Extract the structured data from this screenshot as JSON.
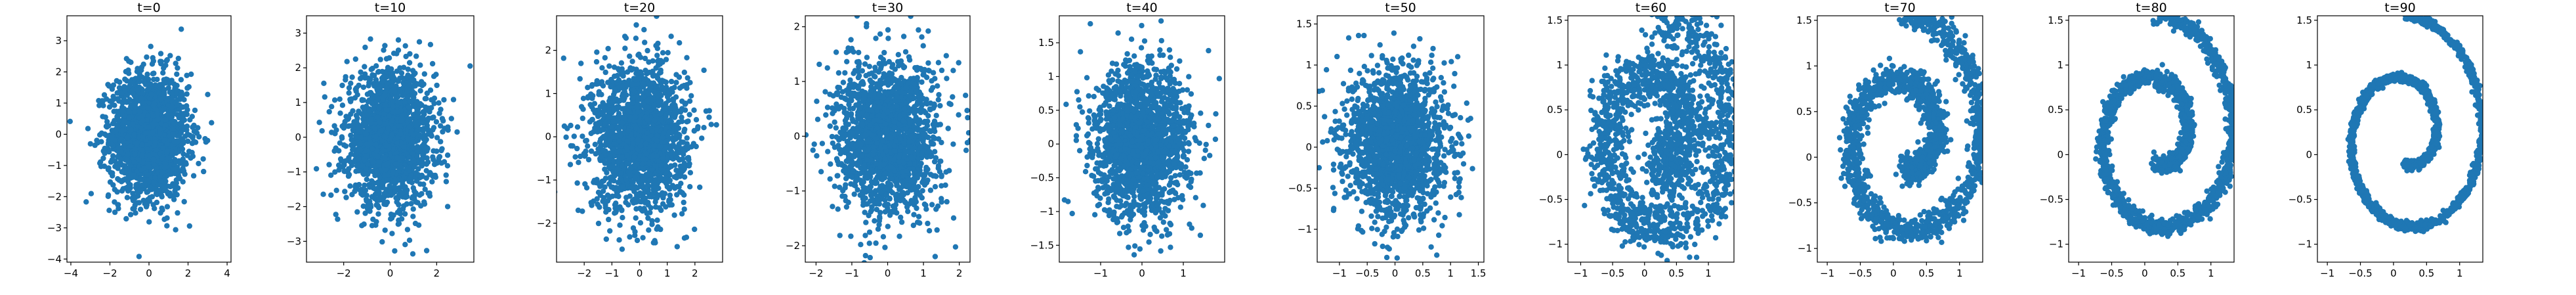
{
  "figure": {
    "marker_color": "#1f77b4",
    "background": "#ffffff",
    "frame_color": "#000000"
  },
  "chart_data": [
    {
      "type": "scatter",
      "title": "t=0",
      "shape": "blob",
      "grid": false,
      "xlim": [
        -4.2,
        4.2
      ],
      "ylim": [
        -4.1,
        3.8
      ],
      "xticks": [
        -4,
        -2,
        0,
        2,
        4
      ],
      "yticks": [
        -4,
        -3,
        -2,
        -1,
        0,
        1,
        2,
        3
      ],
      "spread": [
        1.0,
        1.0
      ]
    },
    {
      "type": "scatter",
      "title": "t=10",
      "shape": "blob",
      "grid": false,
      "xlim": [
        -3.6,
        3.6
      ],
      "ylim": [
        -3.6,
        3.5
      ],
      "xticks": [
        -2,
        0,
        2
      ],
      "yticks": [
        -3,
        -2,
        -1,
        0,
        1,
        2,
        3
      ],
      "spread": [
        0.95,
        0.95
      ]
    },
    {
      "type": "scatter",
      "title": "t=20",
      "shape": "blob",
      "grid": false,
      "xlim": [
        -3.0,
        3.0
      ],
      "ylim": [
        -2.9,
        2.8
      ],
      "xticks": [
        -2,
        -1,
        0,
        1,
        2
      ],
      "yticks": [
        -2,
        -1,
        0,
        1,
        2
      ],
      "spread": [
        0.85,
        0.85
      ]
    },
    {
      "type": "scatter",
      "title": "t=30",
      "shape": "blob",
      "grid": false,
      "xlim": [
        -2.3,
        2.3
      ],
      "ylim": [
        -2.3,
        2.2
      ],
      "xticks": [
        -2,
        -1,
        0,
        1,
        2
      ],
      "yticks": [
        -2,
        -1,
        0,
        1,
        2
      ],
      "spread": [
        0.7,
        0.7
      ]
    },
    {
      "type": "scatter",
      "title": "t=40",
      "shape": "blob",
      "grid": false,
      "xlim": [
        -2.0,
        2.0
      ],
      "ylim": [
        -1.75,
        1.9
      ],
      "xticks": [
        -1,
        0,
        1
      ],
      "yticks": [
        -1.5,
        -1.0,
        -0.5,
        0.0,
        0.5,
        1.0,
        1.5
      ],
      "spread": [
        0.58,
        0.55
      ]
    },
    {
      "type": "scatter",
      "title": "t=50",
      "shape": "blob",
      "grid": false,
      "xlim": [
        -1.4,
        1.6
      ],
      "ylim": [
        -1.4,
        1.6
      ],
      "xticks": [
        -1.0,
        -0.5,
        0.0,
        0.5,
        1.0,
        1.5
      ],
      "yticks": [
        -1.0,
        -0.5,
        0.0,
        0.5,
        1.0,
        1.5
      ],
      "spread": [
        0.45,
        0.45
      ]
    },
    {
      "type": "scatter",
      "title": "t=60",
      "shape": "spiral",
      "grid": false,
      "xlim": [
        -1.2,
        1.4
      ],
      "ylim": [
        -1.2,
        1.55
      ],
      "xticks": [
        -1.0,
        -0.5,
        0.0,
        0.5,
        1.0
      ],
      "yticks": [
        -1.0,
        -0.5,
        0.0,
        0.5,
        1.0,
        1.5
      ],
      "spread": [
        0.17,
        0.17
      ]
    },
    {
      "type": "scatter",
      "title": "t=70",
      "shape": "spiral",
      "grid": false,
      "xlim": [
        -1.15,
        1.35
      ],
      "ylim": [
        -1.15,
        1.55
      ],
      "xticks": [
        -1.0,
        -0.5,
        0.0,
        0.5,
        1.0
      ],
      "yticks": [
        -1.0,
        -0.5,
        0.0,
        0.5,
        1.0,
        1.5
      ],
      "spread": [
        0.08,
        0.08
      ]
    },
    {
      "type": "scatter",
      "title": "t=80",
      "shape": "spiral",
      "grid": false,
      "xlim": [
        -1.15,
        1.35
      ],
      "ylim": [
        -1.2,
        1.55
      ],
      "xticks": [
        -1.0,
        -0.5,
        0.0,
        0.5,
        1.0
      ],
      "yticks": [
        -1.0,
        -0.5,
        0.0,
        0.5,
        1.0,
        1.5
      ],
      "spread": [
        0.045,
        0.045
      ]
    },
    {
      "type": "scatter",
      "title": "t=90",
      "shape": "spiral",
      "grid": false,
      "xlim": [
        -1.15,
        1.35
      ],
      "ylim": [
        -1.2,
        1.55
      ],
      "xticks": [
        -1.0,
        -0.5,
        0.0,
        0.5,
        1.0
      ],
      "yticks": [
        -1.0,
        -0.5,
        0.0,
        0.5,
        1.0,
        1.5
      ],
      "spread": [
        0.025,
        0.025
      ]
    }
  ]
}
